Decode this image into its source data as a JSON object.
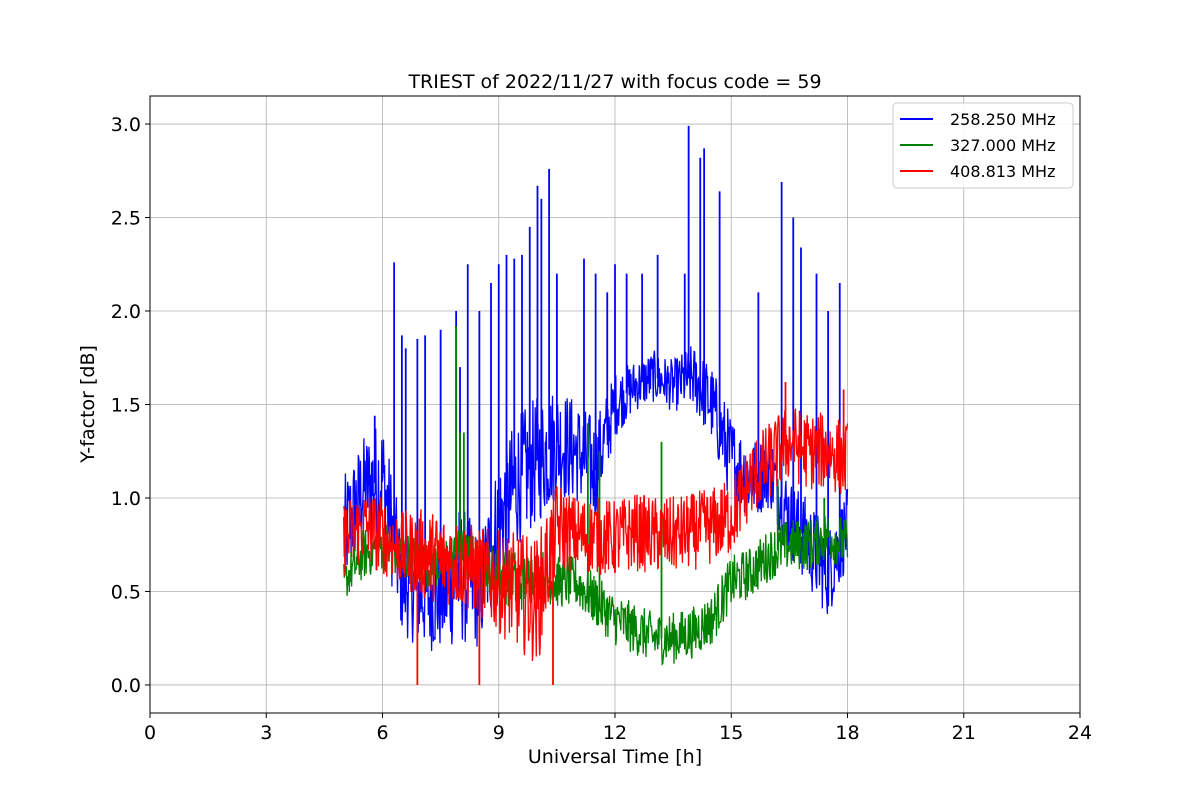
{
  "chart_data": {
    "type": "line",
    "title": "TRIEST of 2022/11/27 with focus code = 59",
    "xlabel": "Universal Time [h]",
    "ylabel": "Y-factor [dB]",
    "xlim": [
      0,
      24
    ],
    "ylim": [
      -0.15,
      3.15
    ],
    "xticks": [
      0,
      3,
      6,
      9,
      12,
      15,
      18,
      21,
      24
    ],
    "yticks": [
      0.0,
      0.5,
      1.0,
      1.5,
      2.0,
      2.5,
      3.0
    ],
    "xtick_labels": [
      "0",
      "3",
      "6",
      "9",
      "12",
      "15",
      "18",
      "21",
      "24"
    ],
    "ytick_labels": [
      "0.0",
      "0.5",
      "1.0",
      "1.5",
      "2.0",
      "2.5",
      "3.0"
    ],
    "grid": true,
    "legend_position": "top-right",
    "x": [
      5.0,
      5.5,
      6.0,
      6.5,
      7.0,
      7.5,
      8.0,
      8.5,
      9.0,
      9.5,
      10.0,
      10.5,
      11.0,
      11.5,
      12.0,
      12.5,
      13.0,
      13.5,
      14.0,
      14.5,
      15.0,
      15.5,
      16.0,
      16.5,
      17.0,
      17.5,
      18.0
    ],
    "series": [
      {
        "name": "258.250 MHz",
        "color": "#0000ff",
        "values": [
          0.8,
          1.05,
          1.1,
          0.55,
          0.5,
          0.45,
          0.6,
          0.5,
          0.85,
          1.1,
          1.2,
          1.3,
          1.25,
          1.15,
          1.5,
          1.6,
          1.65,
          1.6,
          1.65,
          1.5,
          1.2,
          1.1,
          1.15,
          0.9,
          0.75,
          0.6,
          0.85
        ],
        "band": [
          0.45,
          0.4,
          0.5,
          0.4,
          0.45,
          0.4,
          0.55,
          0.45,
          0.55,
          0.5,
          0.5,
          0.45,
          0.4,
          0.4,
          0.25,
          0.2,
          0.2,
          0.2,
          0.25,
          0.3,
          0.35,
          0.3,
          0.3,
          0.3,
          0.35,
          0.35,
          0.3
        ],
        "spikes": [
          [
            5.8,
            1.44
          ],
          [
            6.3,
            2.26
          ],
          [
            6.5,
            1.87
          ],
          [
            6.6,
            1.8
          ],
          [
            6.9,
            1.85
          ],
          [
            7.1,
            1.87
          ],
          [
            7.5,
            1.9
          ],
          [
            7.9,
            2.0
          ],
          [
            8.0,
            1.7
          ],
          [
            8.2,
            2.25
          ],
          [
            8.5,
            2.0
          ],
          [
            8.8,
            2.15
          ],
          [
            9.0,
            2.25
          ],
          [
            9.2,
            2.3
          ],
          [
            9.4,
            2.28
          ],
          [
            9.6,
            2.3
          ],
          [
            9.8,
            2.45
          ],
          [
            10.0,
            2.67
          ],
          [
            10.1,
            2.6
          ],
          [
            10.3,
            2.76
          ],
          [
            10.5,
            2.2
          ],
          [
            11.2,
            2.28
          ],
          [
            11.5,
            2.2
          ],
          [
            11.8,
            2.1
          ],
          [
            12.0,
            2.25
          ],
          [
            12.3,
            2.2
          ],
          [
            12.7,
            2.2
          ],
          [
            13.1,
            2.3
          ],
          [
            13.8,
            2.2
          ],
          [
            13.9,
            2.99
          ],
          [
            14.2,
            2.82
          ],
          [
            14.3,
            2.87
          ],
          [
            14.7,
            2.64
          ],
          [
            15.7,
            2.1
          ],
          [
            16.3,
            2.69
          ],
          [
            16.6,
            2.5
          ],
          [
            16.8,
            2.34
          ],
          [
            17.2,
            2.2
          ],
          [
            17.5,
            2.0
          ],
          [
            17.8,
            2.15
          ]
        ]
      },
      {
        "name": "327.000 MHz",
        "color": "#008000",
        "values": [
          0.55,
          0.7,
          0.75,
          0.7,
          0.65,
          0.65,
          0.7,
          0.65,
          0.6,
          0.55,
          0.6,
          0.55,
          0.55,
          0.45,
          0.35,
          0.3,
          0.25,
          0.25,
          0.28,
          0.35,
          0.55,
          0.6,
          0.7,
          0.75,
          0.75,
          0.8,
          0.75
        ],
        "band": [
          0.15,
          0.2,
          0.2,
          0.2,
          0.2,
          0.2,
          0.2,
          0.2,
          0.2,
          0.25,
          0.2,
          0.2,
          0.2,
          0.2,
          0.2,
          0.2,
          0.2,
          0.2,
          0.2,
          0.2,
          0.2,
          0.2,
          0.2,
          0.2,
          0.2,
          0.2,
          0.2
        ],
        "spikes": [
          [
            7.9,
            1.92
          ],
          [
            8.0,
            1.35
          ],
          [
            8.1,
            1.35
          ],
          [
            11.3,
            1.4
          ],
          [
            11.6,
            1.25
          ],
          [
            13.2,
            1.3
          ],
          [
            16.2,
            1.1
          ],
          [
            17.4,
            1.0
          ]
        ]
      },
      {
        "name": "408.813 MHz",
        "color": "#ff0000",
        "values": [
          0.78,
          0.85,
          0.8,
          0.72,
          0.7,
          0.68,
          0.65,
          0.6,
          0.55,
          0.5,
          0.45,
          0.85,
          0.8,
          0.8,
          0.78,
          0.82,
          0.8,
          0.8,
          0.82,
          0.85,
          0.9,
          1.1,
          1.2,
          1.3,
          1.25,
          1.25,
          1.2
        ],
        "band": [
          0.3,
          0.3,
          0.3,
          0.3,
          0.35,
          0.35,
          0.35,
          0.35,
          0.4,
          0.45,
          0.5,
          0.35,
          0.3,
          0.3,
          0.3,
          0.3,
          0.3,
          0.3,
          0.3,
          0.3,
          0.3,
          0.3,
          0.3,
          0.3,
          0.3,
          0.3,
          0.3
        ],
        "spikes": [
          [
            6.9,
            0.0
          ],
          [
            8.5,
            0.0
          ],
          [
            10.4,
            0.0
          ],
          [
            16.4,
            1.62
          ],
          [
            17.9,
            1.58
          ]
        ]
      }
    ]
  }
}
